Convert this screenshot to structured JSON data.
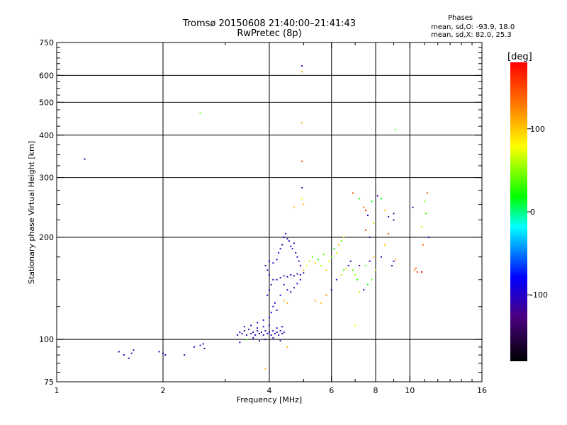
{
  "header": {
    "title_line1": "Tromsø 20150608 21:40:00–21:41:43",
    "title_line2": "RwPretec (8p)"
  },
  "phases_box": {
    "heading": "Phases",
    "line1": "mean, sd,O: -93.9, 18.0",
    "line2": "mean, sd,X:  82.0, 25.3"
  },
  "colorbar": {
    "unit": "[deg]",
    "min": -180,
    "max": 180,
    "tick_values": [
      100,
      0,
      -100
    ],
    "tick_labels": [
      "100",
      "0",
      "-100"
    ],
    "colors": [
      "#000000",
      "#4b0082",
      "#0000ff",
      "#00ffff",
      "#00ff00",
      "#ffff00",
      "#ff8000",
      "#ff0000"
    ]
  },
  "chart_data": {
    "type": "scatter",
    "title": "Tromsø 20150608 21:40:00–21:41:43",
    "subtitle": "RwPretec (8p)",
    "xlabel": "Frequency [MHz]",
    "ylabel": "Stationary phase Virtual Height [km]",
    "x_scale": "log",
    "y_scale": "log",
    "xlim": [
      1,
      16
    ],
    "ylim": [
      75,
      750
    ],
    "x_ticks": [
      1,
      2,
      4,
      6,
      8,
      10,
      16
    ],
    "x_tick_labels": [
      "1",
      "2",
      "4",
      "6",
      "8",
      "10",
      "16"
    ],
    "x_minor_ticks": [
      3,
      5,
      7,
      9,
      11,
      12,
      13,
      14,
      15
    ],
    "y_ticks": [
      75,
      100,
      200,
      300,
      400,
      500,
      600,
      750
    ],
    "y_tick_labels": [
      "75",
      "100",
      "200",
      "300",
      "400",
      "500",
      "600",
      "750"
    ],
    "y_minor_ticks": [
      80,
      85,
      90,
      95,
      125,
      150,
      175,
      225,
      250,
      275,
      325,
      350,
      375,
      425,
      450,
      475,
      525,
      550,
      575,
      625,
      650,
      675,
      700,
      725
    ],
    "grid_x": [
      2,
      4,
      6,
      8,
      10
    ],
    "grid_y": [
      100,
      200,
      300,
      400,
      500,
      600
    ],
    "color_encoding": "phase [deg]",
    "points": [
      [
        1.2,
        340,
        -110
      ],
      [
        1.5,
        92,
        -110
      ],
      [
        1.55,
        90,
        -100
      ],
      [
        1.6,
        88,
        -105
      ],
      [
        1.63,
        91,
        -100
      ],
      [
        1.65,
        93,
        -110
      ],
      [
        1.95,
        92,
        -100
      ],
      [
        2.0,
        91,
        -110
      ],
      [
        2.03,
        90,
        -100
      ],
      [
        2.3,
        90,
        -110
      ],
      [
        2.45,
        95,
        -100
      ],
      [
        2.55,
        96,
        -105
      ],
      [
        2.6,
        97,
        -100
      ],
      [
        2.62,
        94,
        -110
      ],
      [
        2.55,
        465,
        40
      ],
      [
        3.25,
        103,
        -110
      ],
      [
        3.3,
        105,
        -100
      ],
      [
        3.35,
        104,
        -105
      ],
      [
        3.4,
        106,
        -110
      ],
      [
        3.45,
        103,
        -100
      ],
      [
        3.5,
        107,
        -105
      ],
      [
        3.55,
        104,
        -110
      ],
      [
        3.6,
        105,
        -100
      ],
      [
        3.65,
        103,
        -105
      ],
      [
        3.7,
        106,
        -110
      ],
      [
        3.75,
        104,
        -100
      ],
      [
        3.8,
        105,
        -105
      ],
      [
        3.85,
        103,
        -110
      ],
      [
        3.9,
        106,
        -100
      ],
      [
        3.95,
        104,
        -105
      ],
      [
        4.0,
        105,
        -110
      ],
      [
        4.05,
        103,
        -100
      ],
      [
        4.1,
        106,
        -105
      ],
      [
        4.15,
        104,
        -110
      ],
      [
        4.2,
        105,
        -100
      ],
      [
        4.25,
        103,
        -105
      ],
      [
        4.3,
        106,
        -110
      ],
      [
        4.35,
        104,
        -100
      ],
      [
        4.4,
        105,
        -105
      ],
      [
        3.3,
        98,
        -110
      ],
      [
        3.45,
        100,
        40
      ],
      [
        3.6,
        101,
        -100
      ],
      [
        3.75,
        99,
        -110
      ],
      [
        3.9,
        100,
        -105
      ],
      [
        4.1,
        101,
        -100
      ],
      [
        4.3,
        99,
        -110
      ],
      [
        3.4,
        109,
        -100
      ],
      [
        3.55,
        110,
        -110
      ],
      [
        3.7,
        108,
        -105
      ],
      [
        3.85,
        109,
        -100
      ],
      [
        4.0,
        110,
        -110
      ],
      [
        4.2,
        108,
        -105
      ],
      [
        4.35,
        109,
        -100
      ],
      [
        3.7,
        112,
        -100
      ],
      [
        3.85,
        114,
        -110
      ],
      [
        4.0,
        116,
        -105
      ],
      [
        4.05,
        120,
        -100
      ],
      [
        4.1,
        125,
        -110
      ],
      [
        4.15,
        128,
        -105
      ],
      [
        4.2,
        122,
        -100
      ],
      [
        3.9,
        82,
        110
      ],
      [
        3.95,
        135,
        -110
      ],
      [
        4.0,
        140,
        -100
      ],
      [
        4.05,
        145,
        -105
      ],
      [
        4.1,
        150,
        -110
      ],
      [
        4.0,
        155,
        -100
      ],
      [
        3.95,
        160,
        -105
      ],
      [
        3.9,
        165,
        -110
      ],
      [
        4.0,
        170,
        -100
      ],
      [
        4.1,
        168,
        -105
      ],
      [
        4.2,
        172,
        -110
      ],
      [
        4.25,
        180,
        -100
      ],
      [
        4.3,
        185,
        -105
      ],
      [
        4.35,
        190,
        -110
      ],
      [
        4.4,
        200,
        -100
      ],
      [
        4.45,
        205,
        -105
      ],
      [
        4.5,
        198,
        -110
      ],
      [
        4.55,
        195,
        -100
      ],
      [
        4.6,
        188,
        -105
      ],
      [
        4.65,
        185,
        -110
      ],
      [
        4.7,
        192,
        -100
      ],
      [
        4.75,
        180,
        -105
      ],
      [
        4.8,
        175,
        -110
      ],
      [
        4.85,
        170,
        -100
      ],
      [
        4.9,
        165,
        -105
      ],
      [
        4.2,
        150,
        -110
      ],
      [
        4.3,
        152,
        -100
      ],
      [
        4.4,
        154,
        -105
      ],
      [
        4.5,
        153,
        -110
      ],
      [
        4.6,
        155,
        -100
      ],
      [
        4.7,
        154,
        -105
      ],
      [
        4.8,
        156,
        -110
      ],
      [
        4.9,
        155,
        -100
      ],
      [
        5.0,
        157,
        -105
      ],
      [
        4.4,
        145,
        -110
      ],
      [
        4.5,
        140,
        -100
      ],
      [
        4.6,
        138,
        -105
      ],
      [
        4.7,
        142,
        -110
      ],
      [
        4.8,
        146,
        -100
      ],
      [
        4.9,
        150,
        -105
      ],
      [
        4.3,
        135,
        -110
      ],
      [
        4.4,
        130,
        100
      ],
      [
        4.5,
        128,
        110
      ],
      [
        4.5,
        95,
        110
      ],
      [
        4.95,
        640,
        -110
      ],
      [
        4.95,
        615,
        110
      ],
      [
        4.95,
        435,
        110
      ],
      [
        4.95,
        335,
        150
      ],
      [
        4.95,
        280,
        -110
      ],
      [
        4.95,
        260,
        80
      ],
      [
        4.7,
        245,
        100
      ],
      [
        5.0,
        250,
        110
      ],
      [
        5.0,
        160,
        100
      ],
      [
        5.1,
        165,
        80
      ],
      [
        5.2,
        170,
        60
      ],
      [
        5.3,
        175,
        40
      ],
      [
        5.4,
        168,
        100
      ],
      [
        5.5,
        172,
        20
      ],
      [
        5.6,
        165,
        60
      ],
      [
        5.7,
        178,
        40
      ],
      [
        5.8,
        160,
        100
      ],
      [
        5.9,
        170,
        80
      ],
      [
        6.0,
        175,
        40
      ],
      [
        6.1,
        185,
        20
      ],
      [
        6.2,
        180,
        60
      ],
      [
        6.3,
        190,
        100
      ],
      [
        6.4,
        195,
        40
      ],
      [
        6.5,
        200,
        60
      ],
      [
        5.4,
        130,
        110
      ],
      [
        5.6,
        128,
        100
      ],
      [
        5.8,
        135,
        120
      ],
      [
        6.0,
        140,
        -110
      ],
      [
        6.2,
        150,
        -100
      ],
      [
        6.4,
        155,
        60
      ],
      [
        6.5,
        160,
        40
      ],
      [
        6.6,
        162,
        80
      ],
      [
        6.7,
        165,
        -110
      ],
      [
        6.8,
        170,
        -120
      ],
      [
        6.9,
        160,
        40
      ],
      [
        7.0,
        155,
        60
      ],
      [
        7.1,
        150,
        20
      ],
      [
        7.2,
        165,
        -130
      ],
      [
        6.9,
        270,
        150
      ],
      [
        7.2,
        260,
        20
      ],
      [
        7.4,
        245,
        140
      ],
      [
        7.5,
        240,
        170
      ],
      [
        7.6,
        232,
        -100
      ],
      [
        7.8,
        255,
        20
      ],
      [
        7.5,
        210,
        150
      ],
      [
        7.7,
        200,
        -120
      ],
      [
        7.9,
        220,
        60
      ],
      [
        8.1,
        265,
        -120
      ],
      [
        8.3,
        260,
        20
      ],
      [
        8.5,
        240,
        100
      ],
      [
        8.7,
        230,
        -110
      ],
      [
        9.0,
        225,
        -140
      ],
      [
        9.1,
        415,
        40
      ],
      [
        8.7,
        205,
        150
      ],
      [
        8.5,
        190,
        100
      ],
      [
        8.3,
        175,
        -110
      ],
      [
        8.0,
        160,
        60
      ],
      [
        7.8,
        150,
        40
      ],
      [
        7.6,
        145,
        20
      ],
      [
        7.4,
        140,
        -100
      ],
      [
        7.2,
        138,
        60
      ],
      [
        7.0,
        110,
        80
      ],
      [
        7.5,
        165,
        40
      ],
      [
        7.7,
        170,
        -110
      ],
      [
        7.9,
        175,
        100
      ],
      [
        9.0,
        170,
        -110
      ],
      [
        9.1,
        172,
        110
      ],
      [
        8.9,
        165,
        -120
      ],
      [
        10.3,
        160,
        130
      ],
      [
        10.5,
        158,
        150
      ],
      [
        10.8,
        158,
        170
      ],
      [
        10.4,
        162,
        140
      ],
      [
        11.2,
        270,
        150
      ],
      [
        11.0,
        255,
        50
      ],
      [
        11.1,
        235,
        30
      ],
      [
        10.8,
        215,
        60
      ],
      [
        10.9,
        190,
        140
      ],
      [
        11.3,
        200,
        -110
      ],
      [
        10.2,
        245,
        -120
      ],
      [
        9.0,
        235,
        -110
      ]
    ]
  }
}
